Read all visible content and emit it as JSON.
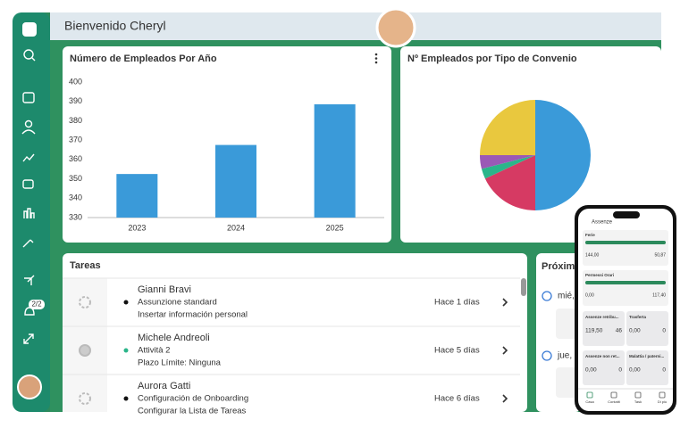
{
  "header": {
    "greeting": "Bienvenido Cheryl"
  },
  "sidebar": {
    "badge": "2/2"
  },
  "charts": [
    {
      "type": "bar",
      "title": "Número de Empleados Por Año",
      "categories": [
        "2023",
        "2024",
        "2025"
      ],
      "values": [
        352.5,
        367.5,
        388.5
      ],
      "color": "#3a9ad9",
      "ylim": [
        330,
        400
      ],
      "yticks": [
        330,
        340,
        350,
        360,
        370,
        380,
        390,
        400
      ],
      "grid": false
    },
    {
      "type": "pie",
      "title": "Nº Empleados por Tipo de Convenio",
      "values": [
        50,
        18,
        3,
        4,
        25
      ],
      "colors": [
        "#3a9ad9",
        "#d63a63",
        "#2bb58a",
        "#9b59b6",
        "#e9c83e"
      ]
    }
  ],
  "tasks": {
    "title": "Tareas",
    "rows": [
      {
        "name": "Gianni Bravi",
        "type": "Assunzione standard",
        "detail": "Insertar información personal",
        "time": "Hace 1 días"
      },
      {
        "name": "Michele Andreoli",
        "type": "Attività 2",
        "detail": "Plazo Límite: Ninguna",
        "time": "Hace 5 días"
      },
      {
        "name": "Aurora Gatti",
        "type": "Configuración de Onboarding",
        "detail": "Configurar la Lista de Tareas",
        "time": "Hace 6 días"
      }
    ]
  },
  "upcoming": {
    "title": "Próxim",
    "days": [
      "mié,",
      "jue, 3"
    ]
  },
  "phone": {
    "title": "Assenze",
    "cards": [
      {
        "name": "Ferie",
        "left": "144,00",
        "right": "50,87"
      },
      {
        "name": "Permessi Orari",
        "left": "0,00",
        "right": "117,40"
      }
    ],
    "tiles": [
      {
        "name": "Assenze retribu...",
        "left": "119,50",
        "right": "46"
      },
      {
        "name": "Trasferta",
        "left": "0,00",
        "right": "0"
      },
      {
        "name": "Assenze non ret...",
        "left": "0,00",
        "right": "0"
      },
      {
        "name": "Malattia / paterni...",
        "left": "0,00",
        "right": "0"
      }
    ],
    "nav": [
      "Casa",
      "Contatti",
      "Task",
      "Di più"
    ]
  }
}
